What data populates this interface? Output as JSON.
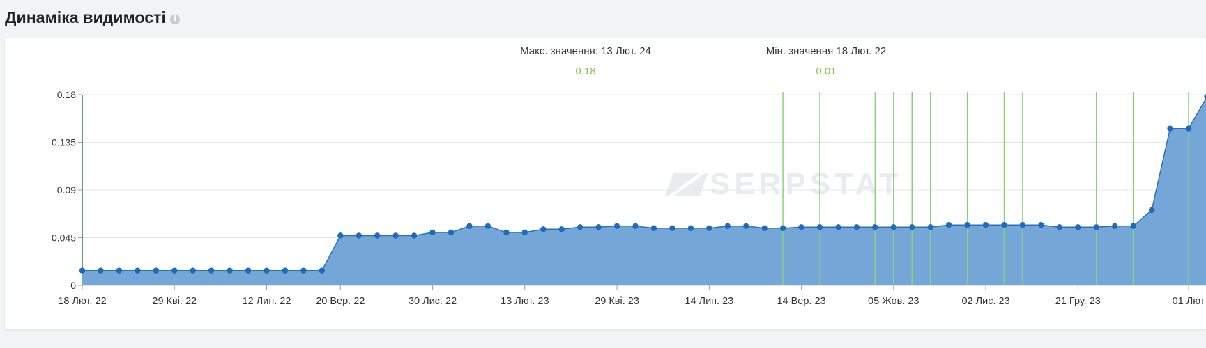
{
  "header": {
    "title": "Динаміка видимості",
    "info_icon": "info-icon"
  },
  "stats": {
    "max_label": "Макс. значення: 13 Лют. 24",
    "max_value": "0.18",
    "min_label": "Мін. значення 18 Лют. 22",
    "min_value": "0.01"
  },
  "watermark": "SERPSTAT",
  "colors": {
    "area": "#74a7d8",
    "line": "#2f6fb5",
    "point": "#1e6bbd",
    "marker_line": "#8bd17a",
    "stat_value": "#8bc34a"
  },
  "chart_data": {
    "type": "area",
    "ylim": [
      0,
      0.18
    ],
    "y_ticks": [
      "0.18",
      "0.135",
      "0.09",
      "0.045",
      "0"
    ],
    "x_tick_labels": [
      "18 Лют. 22",
      "29 Кві. 22",
      "12 Лип. 22",
      "20 Вер. 22",
      "30 Лис. 22",
      "13 Лют. 23",
      "29 Кві. 23",
      "14 Лип. 23",
      "14 Вер. 23",
      "05 Жов. 23",
      "02 Лис. 23",
      "21 Гру. 23",
      "01 Лют"
    ],
    "grid": true,
    "legend": "none",
    "series": [
      {
        "values": [
          0.014,
          0.014,
          0.014,
          0.014,
          0.014,
          0.014,
          0.014,
          0.014,
          0.014,
          0.014,
          0.014,
          0.014,
          0.014,
          0.014,
          0.047,
          0.047,
          0.047,
          0.047,
          0.047,
          0.05,
          0.05,
          0.056,
          0.056,
          0.05,
          0.05,
          0.053,
          0.053,
          0.055,
          0.055,
          0.056,
          0.056,
          0.054,
          0.054,
          0.054,
          0.054,
          0.056,
          0.056,
          0.054,
          0.054,
          0.055,
          0.055,
          0.055,
          0.055,
          0.055,
          0.055,
          0.055,
          0.055,
          0.057,
          0.057,
          0.057,
          0.057,
          0.057,
          0.057,
          0.055,
          0.055,
          0.055,
          0.056,
          0.056,
          0.071,
          0.148,
          0.148,
          0.178
        ]
      }
    ],
    "markers_visible": 15
  }
}
